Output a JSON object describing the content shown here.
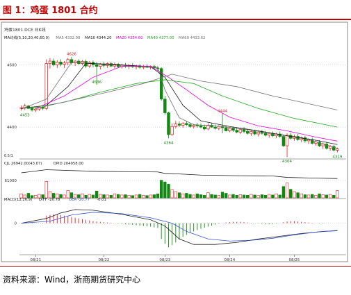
{
  "figure": {
    "title": "图 1：鸡蛋 1801 合约",
    "source": "资料来源：Wind，浙商期货研究中心"
  },
  "colors": {
    "title": "#c00000",
    "up": "#e31a1c",
    "down": "#118811",
    "ma5": "#707070",
    "ma10": "#1a1a1a",
    "ma20": "#e000e0",
    "ma40": "#22aa22",
    "ma60": "#707070",
    "oi": "#1a1a1a",
    "dif": "#1a1a1a",
    "dea": "#3355cc"
  },
  "chart_data": [
    {
      "type": "candlestick",
      "header": "鸡蛋1801.DCE 日K线",
      "legend": [
        {
          "label": "MA均线(5,10,20,40,60,0)",
          "color": "#1a1a1a"
        },
        {
          "label": "MA5 4332.00",
          "color": "#707070"
        },
        {
          "label": "MA10 4344.20",
          "color": "#1a1a1a"
        },
        {
          "label": "MA20 4354.60",
          "color": "#e000e0"
        },
        {
          "label": "MA40 4377.00",
          "color": "#22aa22"
        },
        {
          "label": "MA60 4433.62",
          "color": "#707070"
        }
      ],
      "y_ticks": [
        "4600",
        "4400"
      ],
      "y_tick_values": [
        4600,
        4400
      ],
      "ylim": [
        4300,
        4670
      ],
      "x_ticks": [
        "08/21",
        "08/22",
        "08/23",
        "08/24",
        "08/25"
      ],
      "annotations": [
        {
          "text": "4626",
          "x": 14,
          "y": 4626
        },
        {
          "text": "4536",
          "x": 21,
          "y": 4536
        },
        {
          "text": "4453",
          "x": 1,
          "y": 4453
        },
        {
          "text": "4444",
          "x": 56,
          "y": 4444
        },
        {
          "text": "4364",
          "x": 41,
          "y": 4364
        },
        {
          "text": "4304",
          "x": 74,
          "y": 4304
        },
        {
          "text": "4319",
          "x": 88,
          "y": 4319
        }
      ],
      "candles": [
        [
          4460,
          4470,
          4453,
          4462
        ],
        [
          4462,
          4475,
          4455,
          4468
        ],
        [
          4468,
          4472,
          4458,
          4460
        ],
        [
          4460,
          4466,
          4450,
          4455
        ],
        [
          4455,
          4462,
          4448,
          4458
        ],
        [
          4458,
          4466,
          4452,
          4464
        ],
        [
          4464,
          4470,
          4456,
          4460
        ],
        [
          4460,
          4618,
          4455,
          4604
        ],
        [
          4604,
          4622,
          4588,
          4612
        ],
        [
          4612,
          4620,
          4595,
          4600
        ],
        [
          4600,
          4615,
          4590,
          4609
        ],
        [
          4609,
          4618,
          4595,
          4602
        ],
        [
          4602,
          4612,
          4590,
          4606
        ],
        [
          4606,
          4622,
          4598,
          4617
        ],
        [
          4617,
          4626,
          4600,
          4606
        ],
        [
          4606,
          4615,
          4596,
          4612
        ],
        [
          4612,
          4618,
          4600,
          4604
        ],
        [
          4604,
          4616,
          4598,
          4611
        ],
        [
          4611,
          4617,
          4590,
          4596
        ],
        [
          4596,
          4612,
          4590,
          4608
        ],
        [
          4608,
          4614,
          4592,
          4600
        ],
        [
          4600,
          4610,
          4536,
          4595
        ],
        [
          4595,
          4606,
          4585,
          4603
        ],
        [
          4603,
          4610,
          4592,
          4598
        ],
        [
          4598,
          4608,
          4590,
          4604
        ],
        [
          4604,
          4610,
          4592,
          4596
        ],
        [
          4596,
          4608,
          4588,
          4602
        ],
        [
          4602,
          4606,
          4590,
          4594
        ],
        [
          4594,
          4604,
          4588,
          4599
        ],
        [
          4599,
          4606,
          4590,
          4596
        ],
        [
          4596,
          4602,
          4586,
          4598
        ],
        [
          4598,
          4605,
          4590,
          4594
        ],
        [
          4594,
          4600,
          4585,
          4597
        ],
        [
          4597,
          4602,
          4588,
          4592
        ],
        [
          4592,
          4600,
          4586,
          4596
        ],
        [
          4596,
          4602,
          4590,
          4592
        ],
        [
          4592,
          4598,
          4585,
          4595
        ],
        [
          4595,
          4600,
          4588,
          4590
        ],
        [
          4590,
          4596,
          4580,
          4588
        ],
        [
          4588,
          4592,
          4485,
          4490
        ],
        [
          4490,
          4500,
          4440,
          4446
        ],
        [
          4446,
          4450,
          4364,
          4376
        ],
        [
          4376,
          4412,
          4372,
          4402
        ],
        [
          4402,
          4420,
          4396,
          4410
        ],
        [
          4410,
          4418,
          4400,
          4406
        ],
        [
          4406,
          4416,
          4398,
          4412
        ],
        [
          4412,
          4420,
          4404,
          4408
        ],
        [
          4408,
          4414,
          4398,
          4402
        ],
        [
          4402,
          4410,
          4396,
          4406
        ],
        [
          4406,
          4414,
          4398,
          4404
        ],
        [
          4404,
          4412,
          4396,
          4400
        ],
        [
          4400,
          4408,
          4390,
          4394
        ],
        [
          4394,
          4412,
          4390,
          4406
        ],
        [
          4406,
          4412,
          4398,
          4400
        ],
        [
          4400,
          4408,
          4392,
          4396
        ],
        [
          4396,
          4406,
          4390,
          4402
        ],
        [
          4402,
          4444,
          4380,
          4398
        ],
        [
          4398,
          4406,
          4386,
          4388
        ],
        [
          4388,
          4400,
          4384,
          4396
        ],
        [
          4396,
          4402,
          4385,
          4390
        ],
        [
          4390,
          4398,
          4380,
          4384
        ],
        [
          4384,
          4396,
          4378,
          4392
        ],
        [
          4392,
          4400,
          4380,
          4386
        ],
        [
          4386,
          4394,
          4376,
          4380
        ],
        [
          4380,
          4390,
          4372,
          4386
        ],
        [
          4386,
          4392,
          4374,
          4378
        ],
        [
          4378,
          4388,
          4370,
          4384
        ],
        [
          4384,
          4392,
          4376,
          4380
        ],
        [
          4380,
          4388,
          4370,
          4374
        ],
        [
          4374,
          4384,
          4366,
          4380
        ],
        [
          4380,
          4386,
          4368,
          4372
        ],
        [
          4372,
          4382,
          4364,
          4378
        ],
        [
          4378,
          4386,
          4366,
          4370
        ],
        [
          4370,
          4376,
          4336,
          4340
        ],
        [
          4340,
          4380,
          4304,
          4374
        ],
        [
          4374,
          4382,
          4360,
          4364
        ],
        [
          4364,
          4376,
          4356,
          4370
        ],
        [
          4370,
          4378,
          4356,
          4360
        ],
        [
          4360,
          4370,
          4352,
          4366
        ],
        [
          4366,
          4372,
          4350,
          4356
        ],
        [
          4356,
          4364,
          4346,
          4360
        ],
        [
          4360,
          4366,
          4344,
          4348
        ],
        [
          4348,
          4358,
          4340,
          4352
        ],
        [
          4352,
          4358,
          4336,
          4340
        ],
        [
          4340,
          4350,
          4330,
          4346
        ],
        [
          4346,
          4352,
          4328,
          4332
        ],
        [
          4332,
          4342,
          4324,
          4338
        ],
        [
          4338,
          4342,
          4322,
          4326
        ],
        [
          4326,
          4334,
          4319,
          4330
        ]
      ],
      "ma_lines": [
        {
          "name": "MA5",
          "color": "#707070",
          "points": [
            [
              0,
              4458
            ],
            [
              7,
              4490
            ],
            [
              14,
              4608
            ],
            [
              22,
              4602
            ],
            [
              30,
              4597
            ],
            [
              38,
              4592
            ],
            [
              40,
              4520
            ],
            [
              44,
              4430
            ],
            [
              48,
              4408
            ],
            [
              56,
              4402
            ],
            [
              64,
              4390
            ],
            [
              72,
              4376
            ],
            [
              80,
              4360
            ],
            [
              88,
              4332
            ]
          ]
        },
        {
          "name": "MA10",
          "color": "#1a1a1a",
          "points": [
            [
              0,
              4460
            ],
            [
              7,
              4470
            ],
            [
              13,
              4530
            ],
            [
              18,
              4605
            ],
            [
              26,
              4601
            ],
            [
              36,
              4594
            ],
            [
              40,
              4560
            ],
            [
              45,
              4470
            ],
            [
              50,
              4420
            ],
            [
              58,
              4402
            ],
            [
              66,
              4388
            ],
            [
              74,
              4372
            ],
            [
              82,
              4358
            ],
            [
              88,
              4344
            ]
          ]
        },
        {
          "name": "MA20",
          "color": "#e000e0",
          "points": [
            [
              4,
              4460
            ],
            [
              12,
              4500
            ],
            [
              20,
              4560
            ],
            [
              28,
              4595
            ],
            [
              36,
              4595
            ],
            [
              41,
              4560
            ],
            [
              46,
              4520
            ],
            [
              52,
              4470
            ],
            [
              58,
              4432
            ],
            [
              66,
              4404
            ],
            [
              74,
              4388
            ],
            [
              82,
              4368
            ],
            [
              88,
              4355
            ]
          ]
        },
        {
          "name": "MA40",
          "color": "#22aa22",
          "points": [
            [
              2,
              4460
            ],
            [
              12,
              4480
            ],
            [
              22,
              4512
            ],
            [
              32,
              4540
            ],
            [
              40,
              4552
            ],
            [
              48,
              4540
            ],
            [
              56,
              4500
            ],
            [
              66,
              4460
            ],
            [
              76,
              4428
            ],
            [
              88,
              4400
            ]
          ]
        },
        {
          "name": "MA60",
          "color": "#707070",
          "points": [
            [
              4,
              4460
            ],
            [
              14,
              4486
            ],
            [
              24,
              4512
            ],
            [
              34,
              4540
            ],
            [
              42,
              4570
            ],
            [
              50,
              4548
            ],
            [
              60,
              4530
            ],
            [
              70,
              4500
            ],
            [
              80,
              4475
            ],
            [
              88,
              4455
            ]
          ]
        }
      ],
      "axis_note": "0.5/1"
    },
    {
      "type": "bar",
      "header_items": [
        {
          "label": "CJL 26942.00(43.07)",
          "color": "#1a1a1a"
        },
        {
          "label": "OPID 204958.00",
          "color": "#1a1a1a"
        }
      ],
      "y_ticks": [
        "61000"
      ],
      "y_tick_values": [
        61000
      ],
      "ylim": [
        0,
        110000
      ],
      "volume": [
        14000,
        10000,
        16000,
        8000,
        9000,
        12000,
        11000,
        58000,
        22000,
        16000,
        14000,
        12000,
        10000,
        26000,
        18000,
        12000,
        11000,
        14000,
        9000,
        12000,
        10000,
        24000,
        12000,
        11000,
        10000,
        9000,
        14000,
        12000,
        10000,
        11000,
        9000,
        8000,
        10000,
        12000,
        9000,
        8000,
        10000,
        11000,
        14000,
        62000,
        56000,
        48000,
        28000,
        22000,
        18000,
        14000,
        16000,
        12000,
        10000,
        14000,
        11000,
        9000,
        18000,
        12000,
        10000,
        9000,
        20000,
        16000,
        10000,
        12000,
        9000,
        11000,
        10000,
        9000,
        12000,
        10000,
        8000,
        11000,
        9000,
        12000,
        10000,
        14000,
        10000,
        40000,
        52000,
        30000,
        22000,
        18000,
        14000,
        11000,
        10000,
        12000,
        9000,
        14000,
        11000,
        10000,
        12000,
        9000,
        26000
      ],
      "open_interest": [
        [
          0,
          88000
        ],
        [
          7,
          99000
        ],
        [
          14,
          96000
        ],
        [
          22,
          93000
        ],
        [
          30,
          92000
        ],
        [
          38,
          91000
        ],
        [
          40,
          86000
        ],
        [
          44,
          84000
        ],
        [
          50,
          80000
        ],
        [
          60,
          78000
        ],
        [
          70,
          77000
        ],
        [
          74,
          72000
        ],
        [
          80,
          70000
        ],
        [
          88,
          68000
        ]
      ]
    },
    {
      "type": "bar",
      "header_items": [
        {
          "label": "MACD(12,26,9)",
          "color": "#1a1a1a"
        },
        {
          "label": "DIFF -20.78",
          "color": "#1a1a1a"
        },
        {
          "label": "DEA -20.77",
          "color": "#3355cc"
        },
        {
          "label": "-0.01",
          "color": "#1a1a1a"
        }
      ],
      "y_ticks": [
        "0"
      ],
      "y_tick_values": [
        0
      ],
      "ylim": [
        -90,
        60
      ],
      "histogram": [
        0,
        0,
        1,
        1,
        0,
        0,
        1,
        22,
        24,
        26,
        26,
        24,
        22,
        20,
        18,
        16,
        14,
        12,
        10,
        8,
        6,
        5,
        4,
        3,
        2,
        1,
        0,
        -1,
        -2,
        -3,
        -4,
        -5,
        -6,
        -7,
        -8,
        -9,
        -10,
        -12,
        -14,
        -46,
        -60,
        -70,
        -64,
        -56,
        -48,
        -40,
        -34,
        -28,
        -24,
        -20,
        -16,
        -13,
        -10,
        -7,
        -4,
        -2,
        0,
        2,
        3,
        4,
        4,
        4,
        3,
        2,
        1,
        0,
        -1,
        -2,
        -3,
        -3,
        -2,
        -1,
        0,
        3,
        5,
        6,
        6,
        5,
        4,
        3,
        2,
        1,
        0,
        -1,
        -1,
        0,
        0,
        0,
        0
      ],
      "dif": [
        [
          0,
          0
        ],
        [
          7,
          14
        ],
        [
          11,
          30
        ],
        [
          15,
          40
        ],
        [
          20,
          38
        ],
        [
          28,
          26
        ],
        [
          36,
          10
        ],
        [
          40,
          -8
        ],
        [
          44,
          -46
        ],
        [
          48,
          -62
        ],
        [
          54,
          -62
        ],
        [
          60,
          -56
        ],
        [
          66,
          -46
        ],
        [
          72,
          -38
        ],
        [
          78,
          -30
        ],
        [
          84,
          -24
        ],
        [
          88,
          -22
        ]
      ],
      "dea": [
        [
          0,
          0
        ],
        [
          8,
          6
        ],
        [
          14,
          24
        ],
        [
          20,
          32
        ],
        [
          28,
          28
        ],
        [
          36,
          16
        ],
        [
          42,
          0
        ],
        [
          46,
          -24
        ],
        [
          52,
          -46
        ],
        [
          58,
          -52
        ],
        [
          64,
          -50
        ],
        [
          70,
          -44
        ],
        [
          76,
          -34
        ],
        [
          82,
          -26
        ],
        [
          88,
          -21
        ]
      ]
    }
  ]
}
